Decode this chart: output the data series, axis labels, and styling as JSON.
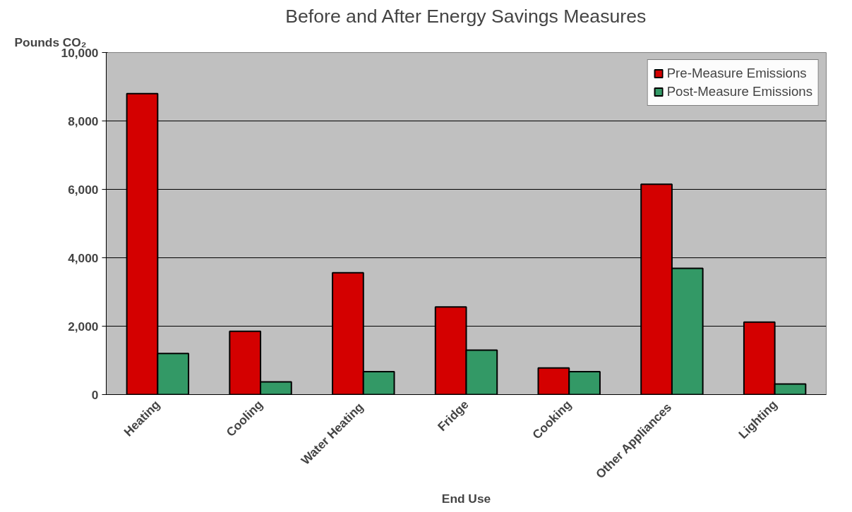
{
  "chart_data": {
    "type": "bar",
    "title": "Before and After Energy Savings Measures",
    "xlabel": "End Use",
    "ylabel": "Pounds CO₂",
    "categories": [
      "Heating",
      "Cooling",
      "Water  Heating",
      "Fridge",
      "Cooking",
      "Other  Appliances",
      "Lighting"
    ],
    "series": [
      {
        "name": "Pre-Measure Emissions",
        "color": "#d40000",
        "values": [
          8800,
          1850,
          3560,
          2560,
          780,
          6150,
          2120
        ]
      },
      {
        "name": "Post-Measure Emissions",
        "color": "#339966",
        "values": [
          1200,
          370,
          670,
          1300,
          670,
          3690,
          310
        ]
      }
    ],
    "ylim": [
      0,
      10000
    ],
    "yticks": [
      {
        "value": 0,
        "label": "0"
      },
      {
        "value": 2000,
        "label": "2,000"
      },
      {
        "value": 4000,
        "label": "4,000"
      },
      {
        "value": 6000,
        "label": "6,000"
      },
      {
        "value": 8000,
        "label": "8,000"
      },
      {
        "value": 10000,
        "label": "10,000"
      }
    ],
    "grid": "y",
    "legend": "top right"
  }
}
